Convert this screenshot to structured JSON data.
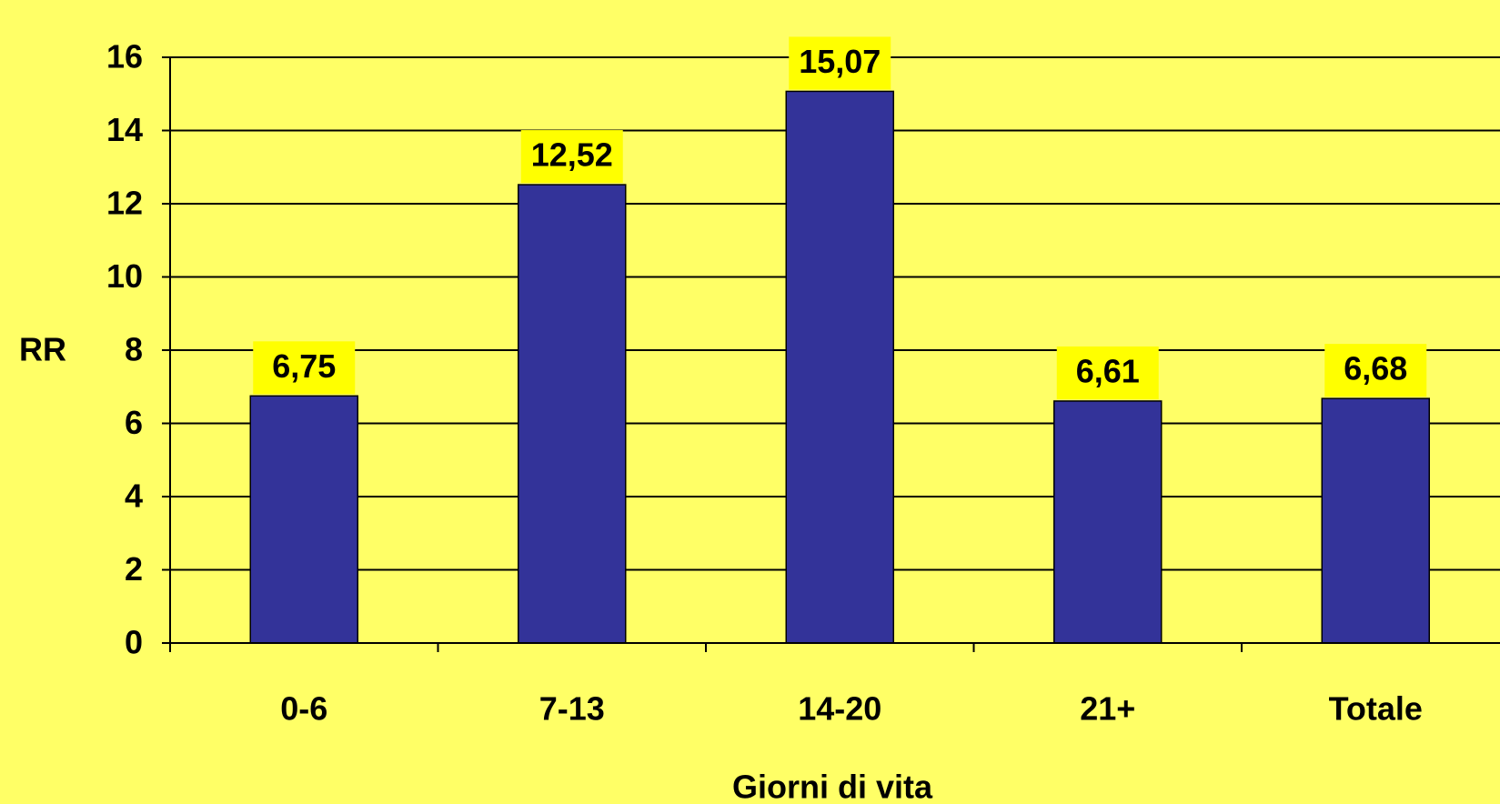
{
  "chart_data": {
    "type": "bar",
    "categories": [
      "0-6",
      "7-13",
      "14-20",
      "21+",
      "Totale"
    ],
    "values": [
      6.75,
      12.52,
      15.07,
      6.61,
      6.68
    ],
    "value_labels": [
      "6,75",
      "12,52",
      "15,07",
      "6,61",
      "6,68"
    ],
    "color": "#333399",
    "ylabel": "RR",
    "xlabel": "Giorni di vita",
    "ylim": [
      0,
      16
    ],
    "yticks": [
      0,
      2,
      4,
      6,
      8,
      10,
      12,
      14,
      16
    ],
    "grid": true
  }
}
